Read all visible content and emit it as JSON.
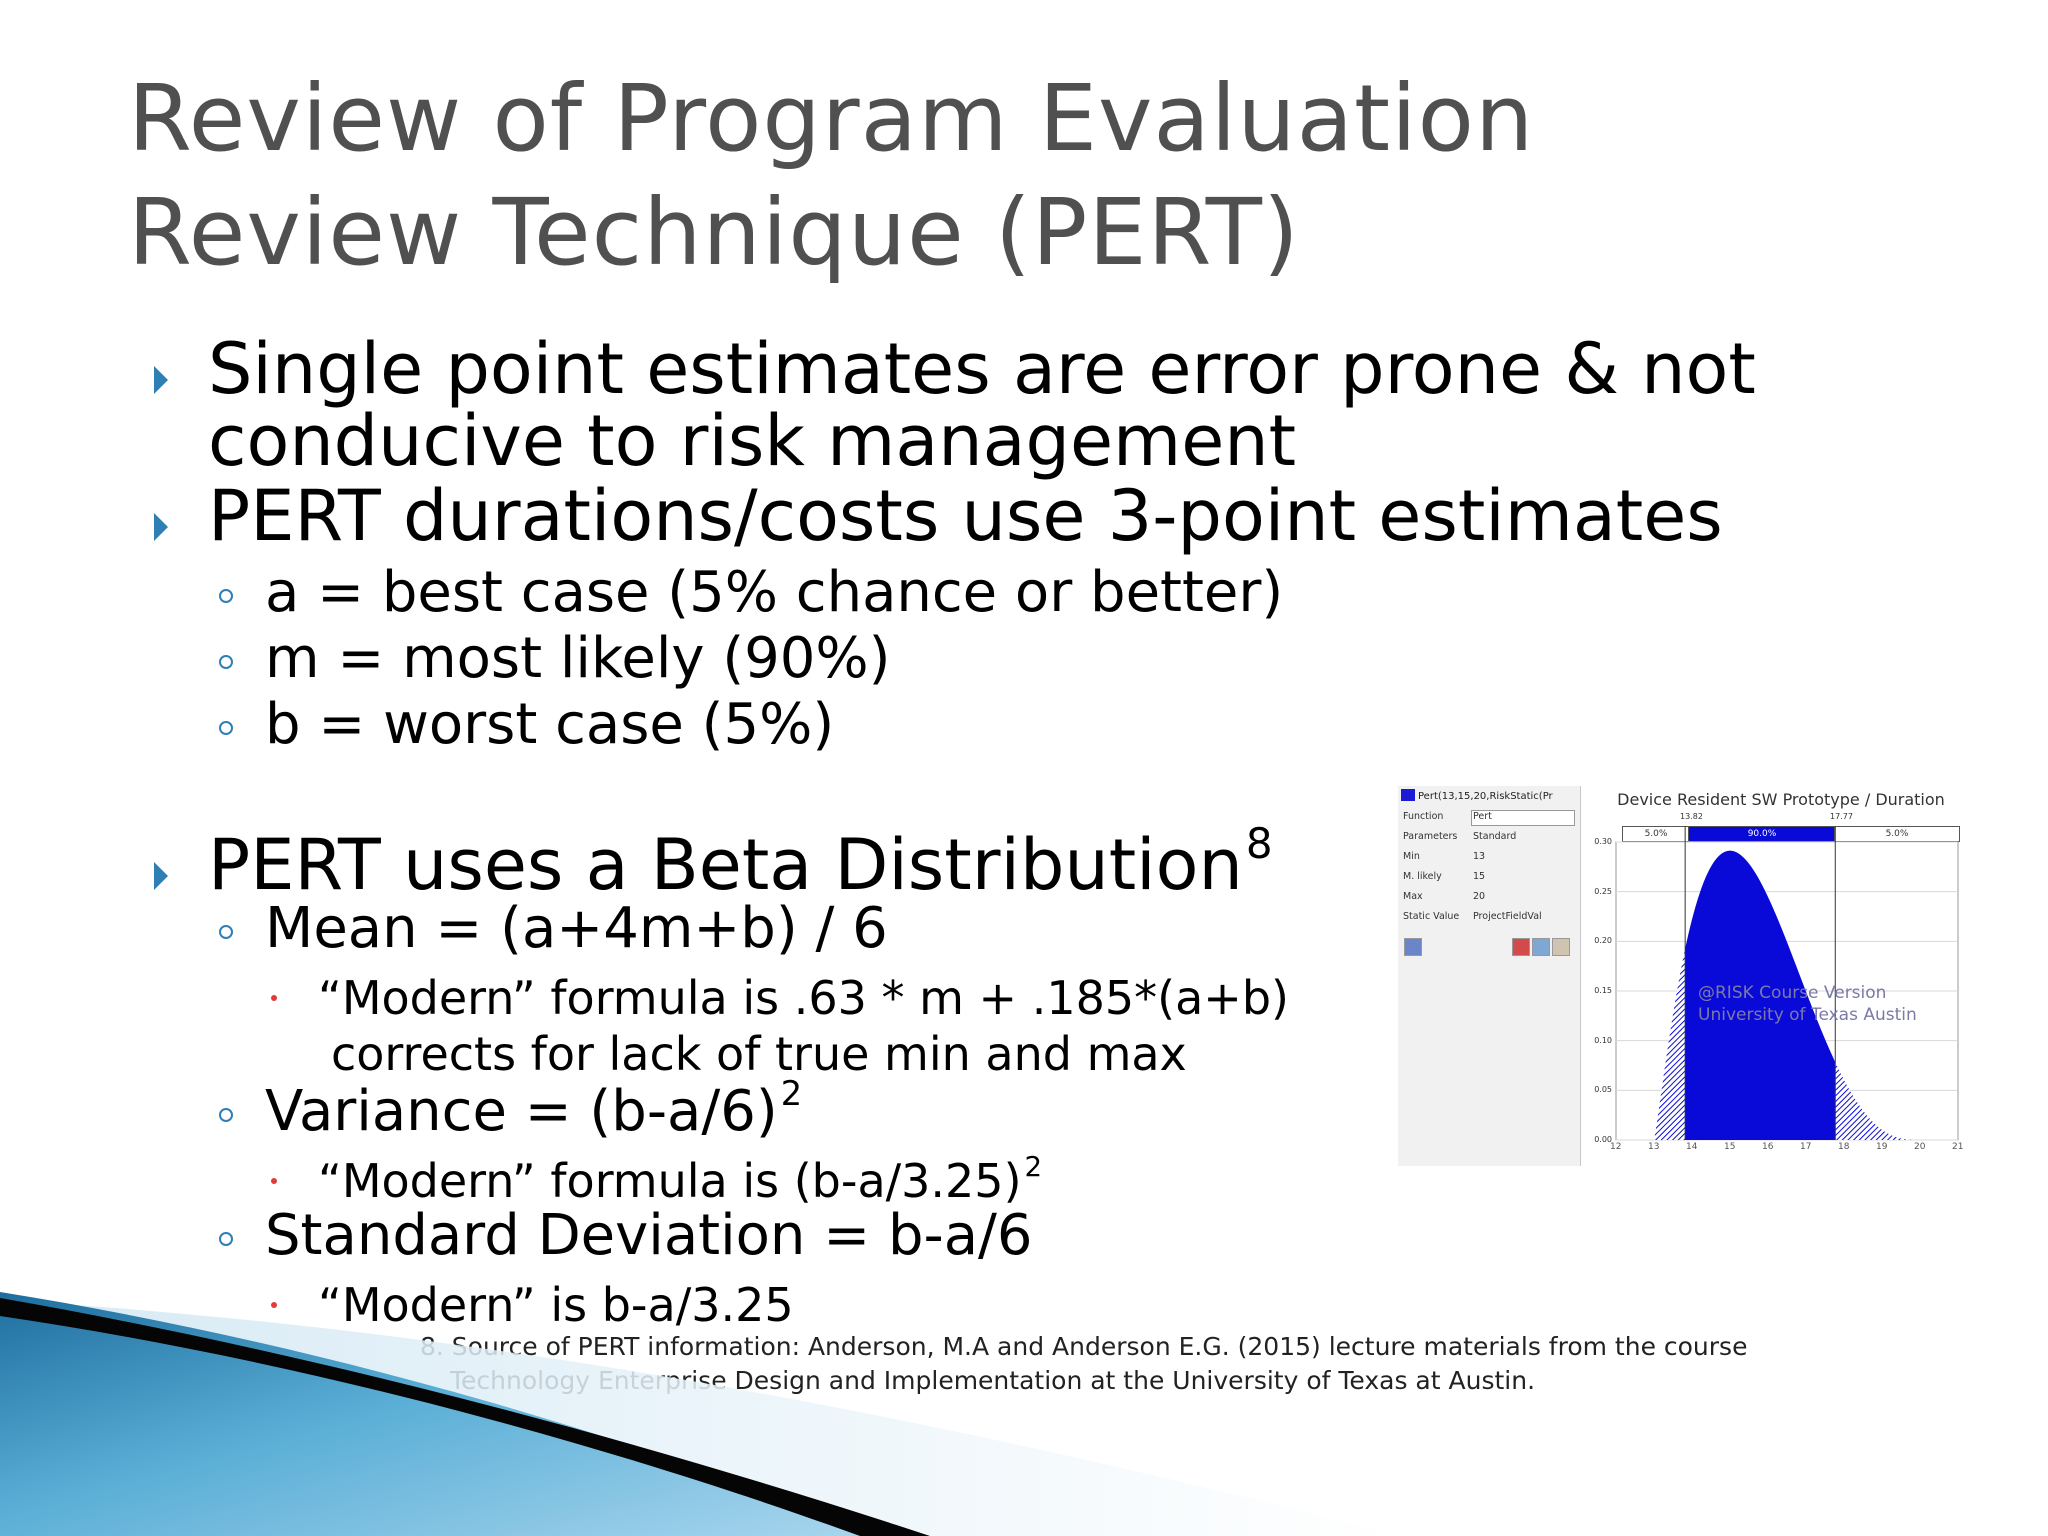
{
  "title": {
    "line1": "Review of Program Evaluation",
    "line2": "Review Technique (PERT)"
  },
  "bullets": {
    "single_point_line1": "Single point estimates are error prone & not",
    "single_point_line2": "conducive to risk management",
    "three_point": "PERT durations/costs use 3-point estimates",
    "best_case": "a = best case (5% chance or better)",
    "most_likely": "m = most likely (90%)",
    "worst_case": "b = worst case (5%)",
    "beta": "PERT uses a Beta Distribution",
    "beta_ref": "8",
    "mean": "Mean = (a+4m+b) / 6",
    "mean_modern_line1": "“Modern” formula is .63 * m + .185*(a+b)",
    "mean_modern_line2": "corrects for lack of true min and max",
    "variance": "Variance = (b-a/6)",
    "variance_exp": "2",
    "variance_modern": "“Modern” formula is (b-a/3.25)",
    "variance_modern_exp": "2",
    "std_dev": "Standard Deviation = b-a/6",
    "std_dev_modern": "“Modern” is b-a/3.25"
  },
  "footnote": {
    "line1": "8. Source of PERT information: Anderson, M.A and Anderson E.G. (2015) lecture materials from the course",
    "line2": "Technology Enterprise Design and Implementation at the University of Texas at Austin."
  },
  "figure": {
    "panel": {
      "formula": "Pert(13,15,20,RiskStatic(Pr",
      "rows": [
        {
          "k": "Function",
          "v": "Pert"
        },
        {
          "k": "Parameters",
          "v": "Standard"
        },
        {
          "k": "Min",
          "v": "13"
        },
        {
          "k": "M. likely",
          "v": "15"
        },
        {
          "k": "Max",
          "v": "20"
        },
        {
          "k": "Static Value",
          "v": "ProjectFieldVal"
        }
      ]
    },
    "chart_title": "Device Resident SW Prototype / Duration",
    "left_marker": "13.82",
    "right_marker": "17.77",
    "band_left": "5.0%",
    "band_mid": "90.0%",
    "band_right": "5.0%",
    "watermark_line1": "@RISK Course Version",
    "watermark_line2": "University of Texas Austin",
    "colors": {
      "fill": "#0a0ad8",
      "accent": "#2e7fb5",
      "sub_bullet": "#e23b3b"
    }
  },
  "chart_data": {
    "type": "area",
    "title": "Device Resident SW Prototype / Duration",
    "distribution": "Pert",
    "min": 13,
    "most_likely": 15,
    "max": 20,
    "percentile_5": 13.82,
    "percentile_95": 17.77,
    "band_labels": [
      "5.0%",
      "90.0%",
      "5.0%"
    ],
    "ylim": [
      0,
      0.3
    ],
    "y_ticks": [
      "0.00",
      "0.05",
      "0.10",
      "0.15",
      "0.20",
      "0.25",
      "0.30"
    ],
    "xlim": [
      12,
      21
    ],
    "x_ticks": [
      "12",
      "13",
      "14",
      "15",
      "16",
      "17",
      "18",
      "19",
      "20",
      "21"
    ]
  }
}
